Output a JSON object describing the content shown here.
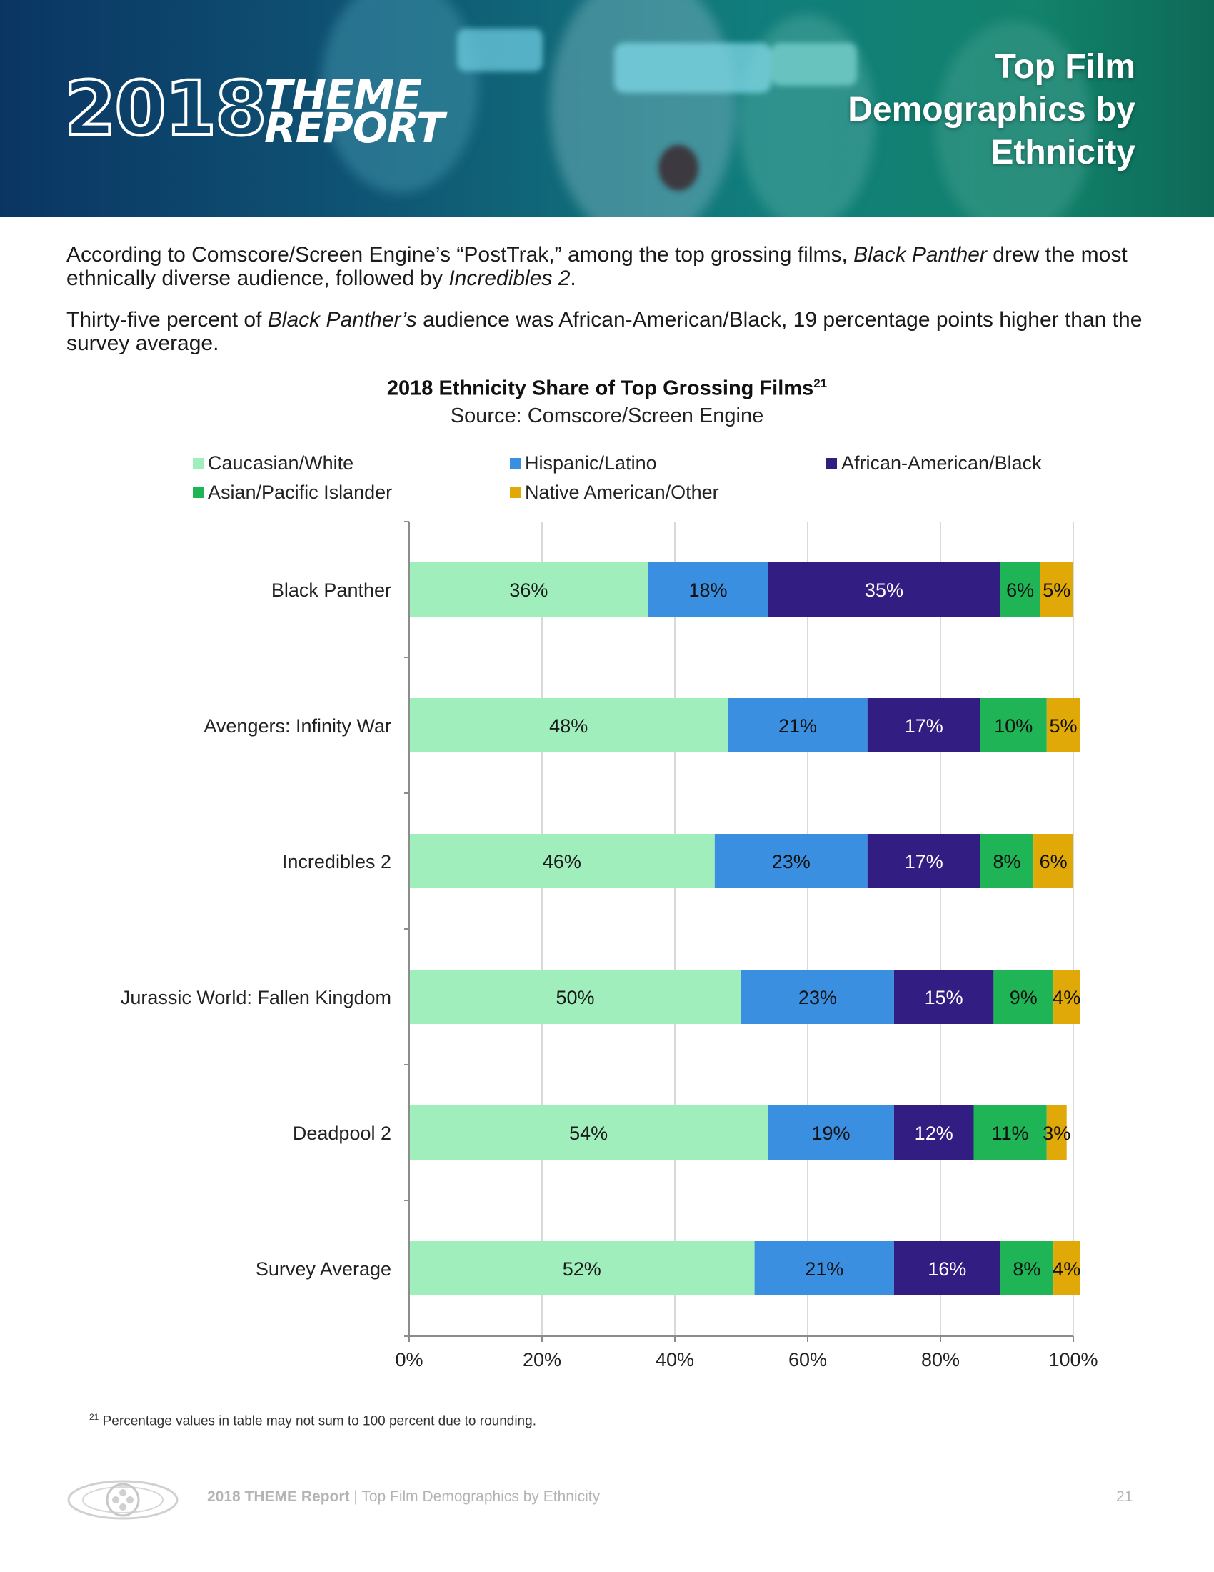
{
  "banner": {
    "year": "2018",
    "brand_line1": "THEME",
    "brand_line2": "REPORT",
    "title": "Top Film Demographics by Ethnicity"
  },
  "intro": {
    "p1_a": "According to Comscore/Screen Engine’s “PostTrak,” among the top grossing films, ",
    "p1_film1": "Black Panther",
    "p1_b": " drew the most ethnically diverse audience, followed by ",
    "p1_film2": "Incredibles 2",
    "p1_c": ".",
    "p2_a": "Thirty-five percent of ",
    "p2_film": "Black Panther’s",
    "p2_b": " audience was African-American/Black, 19 percentage points higher than the survey average."
  },
  "chart_data": {
    "type": "bar",
    "orientation": "horizontal",
    "stacked": true,
    "title": "2018 Ethnicity Share of Top Grossing Films",
    "title_sup": "21",
    "subtitle": "Source: Comscore/Screen Engine",
    "categories": [
      "Black Panther",
      "Avengers: Infinity War",
      "Incredibles 2",
      "Jurassic World: Fallen Kingdom",
      "Deadpool 2",
      "Survey Average"
    ],
    "series": [
      {
        "name": "Caucasian/White",
        "color": "#a0eebc",
        "label_color": "#1a1a1a",
        "values": [
          36,
          48,
          46,
          50,
          54,
          52
        ]
      },
      {
        "name": "Hispanic/Latino",
        "color": "#3b8fe0",
        "label_color": "#111111",
        "values": [
          18,
          21,
          23,
          23,
          19,
          21
        ]
      },
      {
        "name": "African-American/Black",
        "color": "#321d82",
        "label_color": "#ffffff",
        "values": [
          35,
          17,
          17,
          15,
          12,
          16
        ]
      },
      {
        "name": "Asian/Pacific Islander",
        "color": "#1fb556",
        "label_color": "#111111",
        "values": [
          6,
          10,
          8,
          9,
          11,
          8
        ]
      },
      {
        "name": "Native American/Other",
        "color": "#e1a907",
        "label_color": "#111111",
        "values": [
          5,
          5,
          6,
          4,
          3,
          4
        ]
      }
    ],
    "xlim": [
      0,
      100
    ],
    "xticks": [
      "0%",
      "20%",
      "40%",
      "60%",
      "80%",
      "100%"
    ],
    "value_suffix": "%",
    "grid": true,
    "legend_position": "top"
  },
  "footnote": {
    "marker": "21",
    "text": " Percentage values in table may not sum to 100 percent due to rounding."
  },
  "footer": {
    "report": "2018 THEME Report",
    "separator": " | ",
    "section": "Top Film Demographics by Ethnicity",
    "page": "21"
  }
}
